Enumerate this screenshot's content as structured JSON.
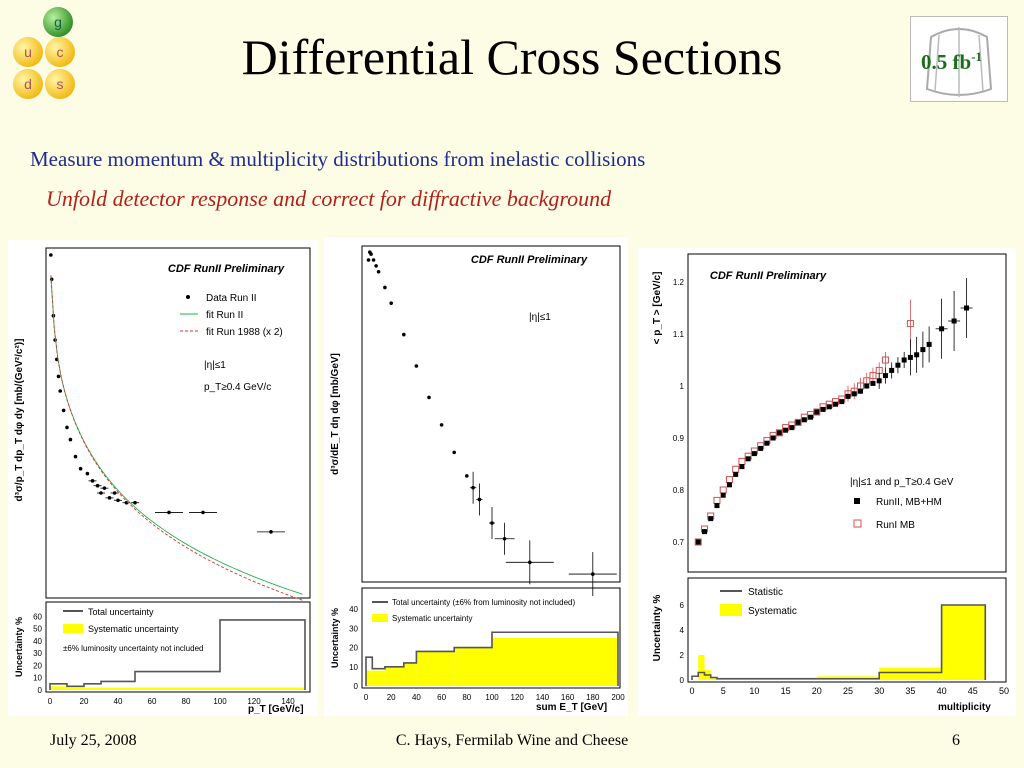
{
  "slide": {
    "title": "Differential Cross Sections",
    "bullet_main": "Measure momentum & multiplicity distributions from inelastic collisions",
    "bullet_sub": "Unfold detector response and correct for diffractive background",
    "lumi_badge": "0.5 fb",
    "lumi_exp": "-1",
    "quark_logo": [
      "g",
      "u",
      "c",
      "d",
      "s"
    ],
    "footer": {
      "date": "July 25, 2008",
      "center": "C. Hays, Fermilab Wine and Cheese",
      "page": "6"
    },
    "colors": {
      "title": "#000000",
      "bullet_main": "#1f2c8f",
      "bullet_sub": "#b3201a",
      "background": "#fdfde6",
      "systematic": "#ffff00"
    }
  },
  "chart_data": [
    {
      "type": "scatter",
      "label": "CDF RunII Preliminary",
      "ylabel": "d³σ/p_T dp_T dφ dy [mb/(GeV²/c²)]",
      "xlabel": "p_T  [GeV/c]",
      "y_scale": "log",
      "legend": [
        "Data Run II",
        "fit Run II",
        "fit Run 1988 (x 2)"
      ],
      "annotations": [
        "|η|≤1",
        "p_T≥0.4 GeV/c"
      ],
      "xlim": [
        0,
        150
      ],
      "x_ticks": [
        "0",
        "20",
        "40",
        "60",
        "80",
        "100",
        "120",
        "140"
      ],
      "data_x": [
        0.5,
        1,
        2,
        3,
        4,
        5,
        6,
        8,
        10,
        12,
        15,
        18,
        22,
        25,
        28,
        30,
        32,
        35,
        38,
        40,
        45,
        50,
        70,
        90,
        130
      ],
      "data_log10y": [
        2,
        1,
        -0.5,
        -1.5,
        -2.3,
        -3,
        -3.6,
        -4.4,
        -5.1,
        -5.6,
        -6.3,
        -6.8,
        -7.0,
        -7.3,
        -7.5,
        -7.8,
        -7.6,
        -8.0,
        -7.8,
        -8.1,
        -8.2,
        -8.2,
        -8.6,
        -8.6,
        -9.4
      ],
      "uncertainty": {
        "ylabel": "Uncertainty %",
        "legend": [
          "Total uncertainty",
          "Systematic uncertainty",
          "±6% luminosity uncertainty not included"
        ],
        "ylim": [
          0,
          70
        ],
        "y_ticks": [
          "0",
          "10",
          "20",
          "30",
          "40",
          "50",
          "60"
        ],
        "total_edges": [
          0,
          10,
          20,
          30,
          50,
          100,
          150
        ],
        "total_values": [
          5,
          3,
          5,
          7,
          15,
          57
        ],
        "systematic_values": [
          3,
          2,
          2,
          2,
          2,
          2
        ]
      }
    },
    {
      "type": "scatter",
      "label": "CDF RunII Preliminary",
      "ylabel": "d³σ/dE_T dη dφ  [mb/GeV]",
      "xlabel": "sum E_T  [GeV]",
      "y_scale": "log",
      "annotations": [
        "|η|≤1"
      ],
      "xlim": [
        0,
        200
      ],
      "x_ticks": [
        "0",
        "20",
        "40",
        "60",
        "80",
        "100",
        "120",
        "140",
        "160",
        "180",
        "200"
      ],
      "data_x": [
        2,
        3,
        4,
        6,
        8,
        10,
        15,
        20,
        30,
        40,
        50,
        60,
        70,
        80,
        85,
        90,
        100,
        110,
        130,
        180
      ],
      "data_log10y": [
        -0.7,
        -0.5,
        -0.55,
        -0.7,
        -0.85,
        -1.0,
        -1.4,
        -1.8,
        -2.6,
        -3.4,
        -4.2,
        -4.9,
        -5.6,
        -6.2,
        -6.5,
        -6.8,
        -7.4,
        -7.8,
        -8.4,
        -8.7
      ],
      "uncertainty": {
        "ylabel": "Uncertainty %",
        "legend": [
          "Total uncertainty (±6% from luminosity not included)",
          "Systematic uncertainty"
        ],
        "ylim": [
          0,
          50
        ],
        "y_ticks": [
          "0",
          "10",
          "20",
          "30",
          "40"
        ],
        "total_edges": [
          0,
          5,
          15,
          30,
          40,
          70,
          100,
          200
        ],
        "total_values": [
          15,
          9,
          10,
          12,
          18,
          20,
          28
        ],
        "systematic_values": [
          8,
          8,
          10,
          12,
          18,
          20,
          25
        ]
      }
    },
    {
      "type": "scatter",
      "label": "CDF RunII Preliminary",
      "ylabel": "< p_T >  [GeV/c]",
      "xlabel": "multiplicity",
      "ylim": [
        0.65,
        1.25
      ],
      "y_ticks": [
        "0.7",
        "0.8",
        "0.9",
        "1",
        "1.1",
        "1.2"
      ],
      "annotations": [
        "|η|≤1 and p_T≥0.4 GeV"
      ],
      "legend": [
        "RunII, MB+HM",
        "RunI MB"
      ],
      "series": [
        {
          "name": "RunII, MB+HM",
          "x": [
            1,
            2,
            3,
            4,
            5,
            6,
            7,
            8,
            9,
            10,
            11,
            12,
            13,
            14,
            15,
            16,
            17,
            18,
            19,
            20,
            21,
            22,
            23,
            24,
            25,
            26,
            27,
            28,
            29,
            30,
            31,
            32,
            33,
            34,
            35,
            36,
            37,
            38,
            40,
            42,
            44
          ],
          "y": [
            0.7,
            0.72,
            0.745,
            0.77,
            0.79,
            0.81,
            0.83,
            0.845,
            0.86,
            0.87,
            0.88,
            0.89,
            0.9,
            0.91,
            0.915,
            0.92,
            0.93,
            0.935,
            0.94,
            0.95,
            0.955,
            0.96,
            0.965,
            0.97,
            0.98,
            0.985,
            0.99,
            1.0,
            1.005,
            1.01,
            1.02,
            1.03,
            1.04,
            1.05,
            1.055,
            1.06,
            1.07,
            1.08,
            1.11,
            1.125,
            1.15
          ]
        },
        {
          "name": "RunI MB",
          "x": [
            1,
            2,
            3,
            4,
            5,
            6,
            7,
            8,
            9,
            10,
            11,
            12,
            13,
            14,
            15,
            16,
            17,
            18,
            19,
            20,
            21,
            22,
            23,
            24,
            25,
            26,
            27,
            28,
            29,
            30,
            31,
            35
          ],
          "y": [
            0.7,
            0.725,
            0.75,
            0.78,
            0.8,
            0.82,
            0.84,
            0.855,
            0.865,
            0.875,
            0.885,
            0.895,
            0.905,
            0.91,
            0.92,
            0.925,
            0.93,
            0.94,
            0.945,
            0.95,
            0.96,
            0.965,
            0.97,
            0.975,
            0.985,
            0.99,
            1.0,
            1.01,
            1.02,
            1.03,
            1.05,
            1.12
          ]
        }
      ],
      "uncertainty": {
        "ylabel": "Uncertainty %",
        "xlabel": "multiplicity",
        "legend": [
          "Statistic",
          "Systematic"
        ],
        "xlim": [
          0,
          50
        ],
        "x_ticks": [
          "0",
          "5",
          "10",
          "15",
          "20",
          "25",
          "30",
          "35",
          "40",
          "45",
          "50"
        ],
        "ylim": [
          0,
          8
        ],
        "y_ticks": [
          "0",
          "2",
          "4",
          "6"
        ],
        "statistic_edges": [
          0,
          1,
          2,
          3,
          4,
          5,
          30,
          40,
          47
        ],
        "statistic_values": [
          0.3,
          0.6,
          0.4,
          0.2,
          0.1,
          0.1,
          0.6,
          6.0
        ],
        "systematic_edges": [
          1,
          2,
          3,
          20,
          30,
          40,
          47
        ],
        "systematic_values": [
          2.0,
          0.8,
          0.2,
          0.3,
          1.0,
          6.0
        ]
      }
    }
  ]
}
